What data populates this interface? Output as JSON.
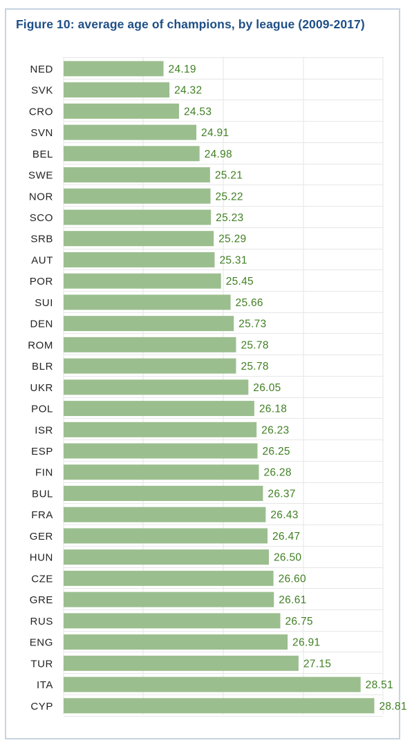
{
  "title": "Figure 10: average age of champions, by league (2009-2017)",
  "colors": {
    "bar": "#9bbe8e",
    "value_label": "#3f7f22",
    "title": "#1f4f86",
    "frame": "#c6d3e0",
    "grid": "#e6e6e6"
  },
  "chart_data": {
    "type": "bar",
    "orientation": "horizontal",
    "title": "Figure 10: average age of champions, by league (2009-2017)",
    "xlabel": "",
    "ylabel": "",
    "xlim": [
      22,
      29
    ],
    "grid": true,
    "categories": [
      "NED",
      "SVK",
      "CRO",
      "SVN",
      "BEL",
      "SWE",
      "NOR",
      "SCO",
      "SRB",
      "AUT",
      "POR",
      "SUI",
      "DEN",
      "ROM",
      "BLR",
      "UKR",
      "POL",
      "ISR",
      "ESP",
      "FIN",
      "BUL",
      "FRA",
      "GER",
      "HUN",
      "CZE",
      "GRE",
      "RUS",
      "ENG",
      "TUR",
      "ITA",
      "CYP"
    ],
    "values": [
      24.19,
      24.32,
      24.53,
      24.91,
      24.98,
      25.21,
      25.22,
      25.23,
      25.29,
      25.31,
      25.45,
      25.66,
      25.73,
      25.78,
      25.78,
      26.05,
      26.18,
      26.23,
      26.25,
      26.28,
      26.37,
      26.43,
      26.47,
      26.5,
      26.6,
      26.61,
      26.75,
      26.91,
      27.15,
      28.51,
      28.81
    ],
    "value_labels": [
      "24.19",
      "24.32",
      "24.53",
      "24.91",
      "24.98",
      "25.21",
      "25.22",
      "25.23",
      "25.29",
      "25.31",
      "25.45",
      "25.66",
      "25.73",
      "25.78",
      "25.78",
      "26.05",
      "26.18",
      "26.23",
      "26.25",
      "26.28",
      "26.37",
      "26.43",
      "26.47",
      "26.50",
      "26.60",
      "26.61",
      "26.75",
      "26.91",
      "27.15",
      "28.51",
      "28.81"
    ]
  }
}
